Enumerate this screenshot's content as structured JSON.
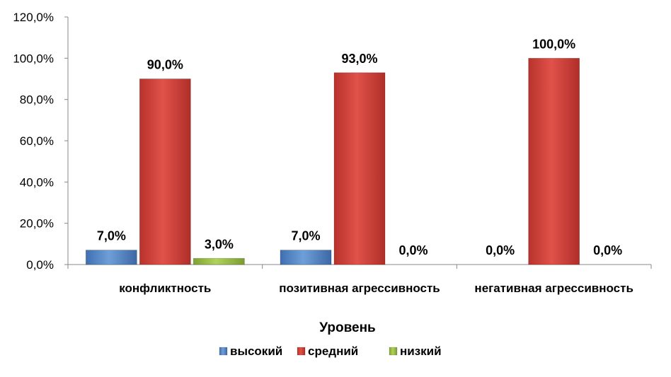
{
  "chart_data": {
    "type": "bar",
    "categories": [
      "конфликтность",
      "позитивная агрессивность",
      "негативная агрессивность"
    ],
    "series": [
      {
        "name": "высокий",
        "values": [
          7.0,
          7.0,
          0.0
        ],
        "labels": [
          "7,0%",
          "7,0%",
          "0,0%"
        ],
        "color": "#4a7ebb"
      },
      {
        "name": "средний",
        "values": [
          90.0,
          93.0,
          100.0
        ],
        "labels": [
          "90,0%",
          "93,0%",
          "100,0%"
        ],
        "color": "#c0392b"
      },
      {
        "name": "низкий",
        "values": [
          3.0,
          0.0,
          0.0
        ],
        "labels": [
          "3,0%",
          "0,0%",
          "0,0%"
        ],
        "color": "#8db13a"
      }
    ],
    "xlabel": "Уровень",
    "ylabel": "",
    "ylim": [
      0,
      120
    ],
    "yticks": [
      0,
      20,
      40,
      60,
      80,
      100,
      120
    ],
    "ytick_labels": [
      "0,0%",
      "20,0%",
      "40,0%",
      "60,0%",
      "80,0%",
      "100,0%",
      "120,0%"
    ],
    "grid": false,
    "legend_position": "bottom"
  }
}
